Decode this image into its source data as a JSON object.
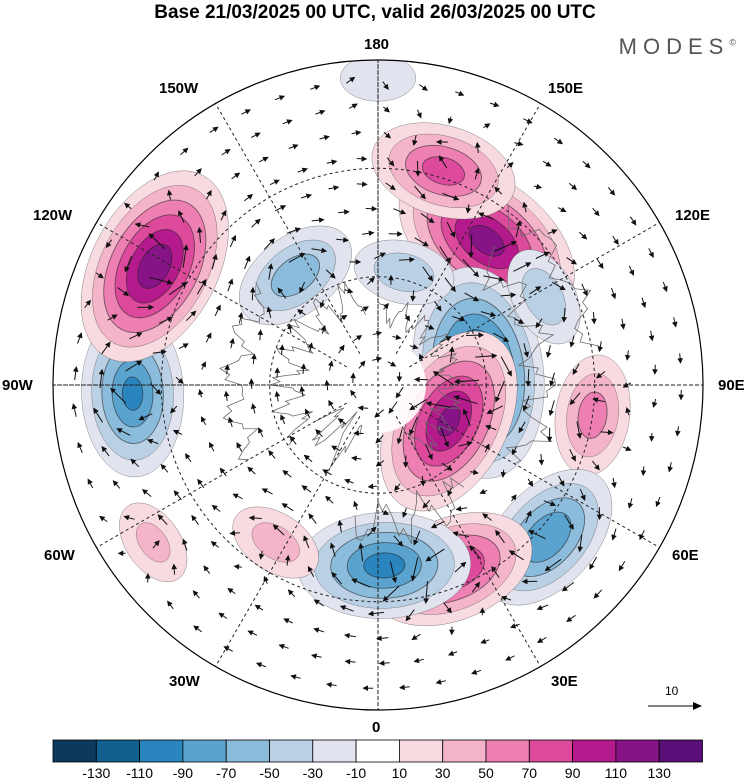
{
  "title": "Base 21/03/2025 00 UTC, valid 26/03/2025 00 UTC",
  "brand": {
    "text": "MODES",
    "mark": "©"
  },
  "longitude_labels": {
    "top": "180",
    "bottom": "0",
    "left": "90W",
    "right": "90E",
    "upper_left_1": "150W",
    "upper_left_2": "120W",
    "upper_right_1": "150E",
    "upper_right_2": "120E",
    "lower_left_1": "60W",
    "lower_left_2": "30W",
    "lower_right_1": "60E",
    "lower_right_2": "30E"
  },
  "reference_vector": {
    "label": "10"
  },
  "colorbar": {
    "colors": [
      "#0d3a5c",
      "#12608f",
      "#2a84bd",
      "#5ba3cf",
      "#8cbcdc",
      "#b9d0e5",
      "#e1e3ef",
      "#ffffff",
      "#f8dbe0",
      "#f4b4c9",
      "#ee7fb3",
      "#dd4a9c",
      "#b51a8c",
      "#871487",
      "#5a0f78"
    ],
    "ticks": [
      "-130",
      "-110",
      "-90",
      "-70",
      "-50",
      "-30",
      "-10",
      "10",
      "30",
      "50",
      "70",
      "90",
      "110",
      "130"
    ]
  },
  "anomaly_centers": [
    {
      "lon": 143,
      "lat": 40,
      "value": 115
    },
    {
      "lon": 163,
      "lat": 28,
      "value": 75
    },
    {
      "lon": 97,
      "lat": 62,
      "value": -125
    },
    {
      "lon": 63,
      "lat": 68,
      "value": 110
    },
    {
      "lon": 82,
      "lat": 30,
      "value": 55
    },
    {
      "lon": 48,
      "lat": 27,
      "value": -85
    },
    {
      "lon": 22,
      "lat": 35,
      "value": 90
    },
    {
      "lon": 2,
      "lat": 40,
      "value": -95
    },
    {
      "lon": -33,
      "lat": 38,
      "value": 35
    },
    {
      "lon": -55,
      "lat": 14,
      "value": 30
    },
    {
      "lon": -88,
      "lat": 22,
      "value": -90
    },
    {
      "lon": -118,
      "lat": 20,
      "value": 120
    },
    {
      "lon": -143,
      "lat": 52,
      "value": -60
    },
    {
      "lon": 167,
      "lat": 58,
      "value": -40
    },
    {
      "lon": 118,
      "lat": 38,
      "value": -40
    },
    {
      "lon": 180,
      "lat": 5,
      "value": -20
    }
  ]
}
